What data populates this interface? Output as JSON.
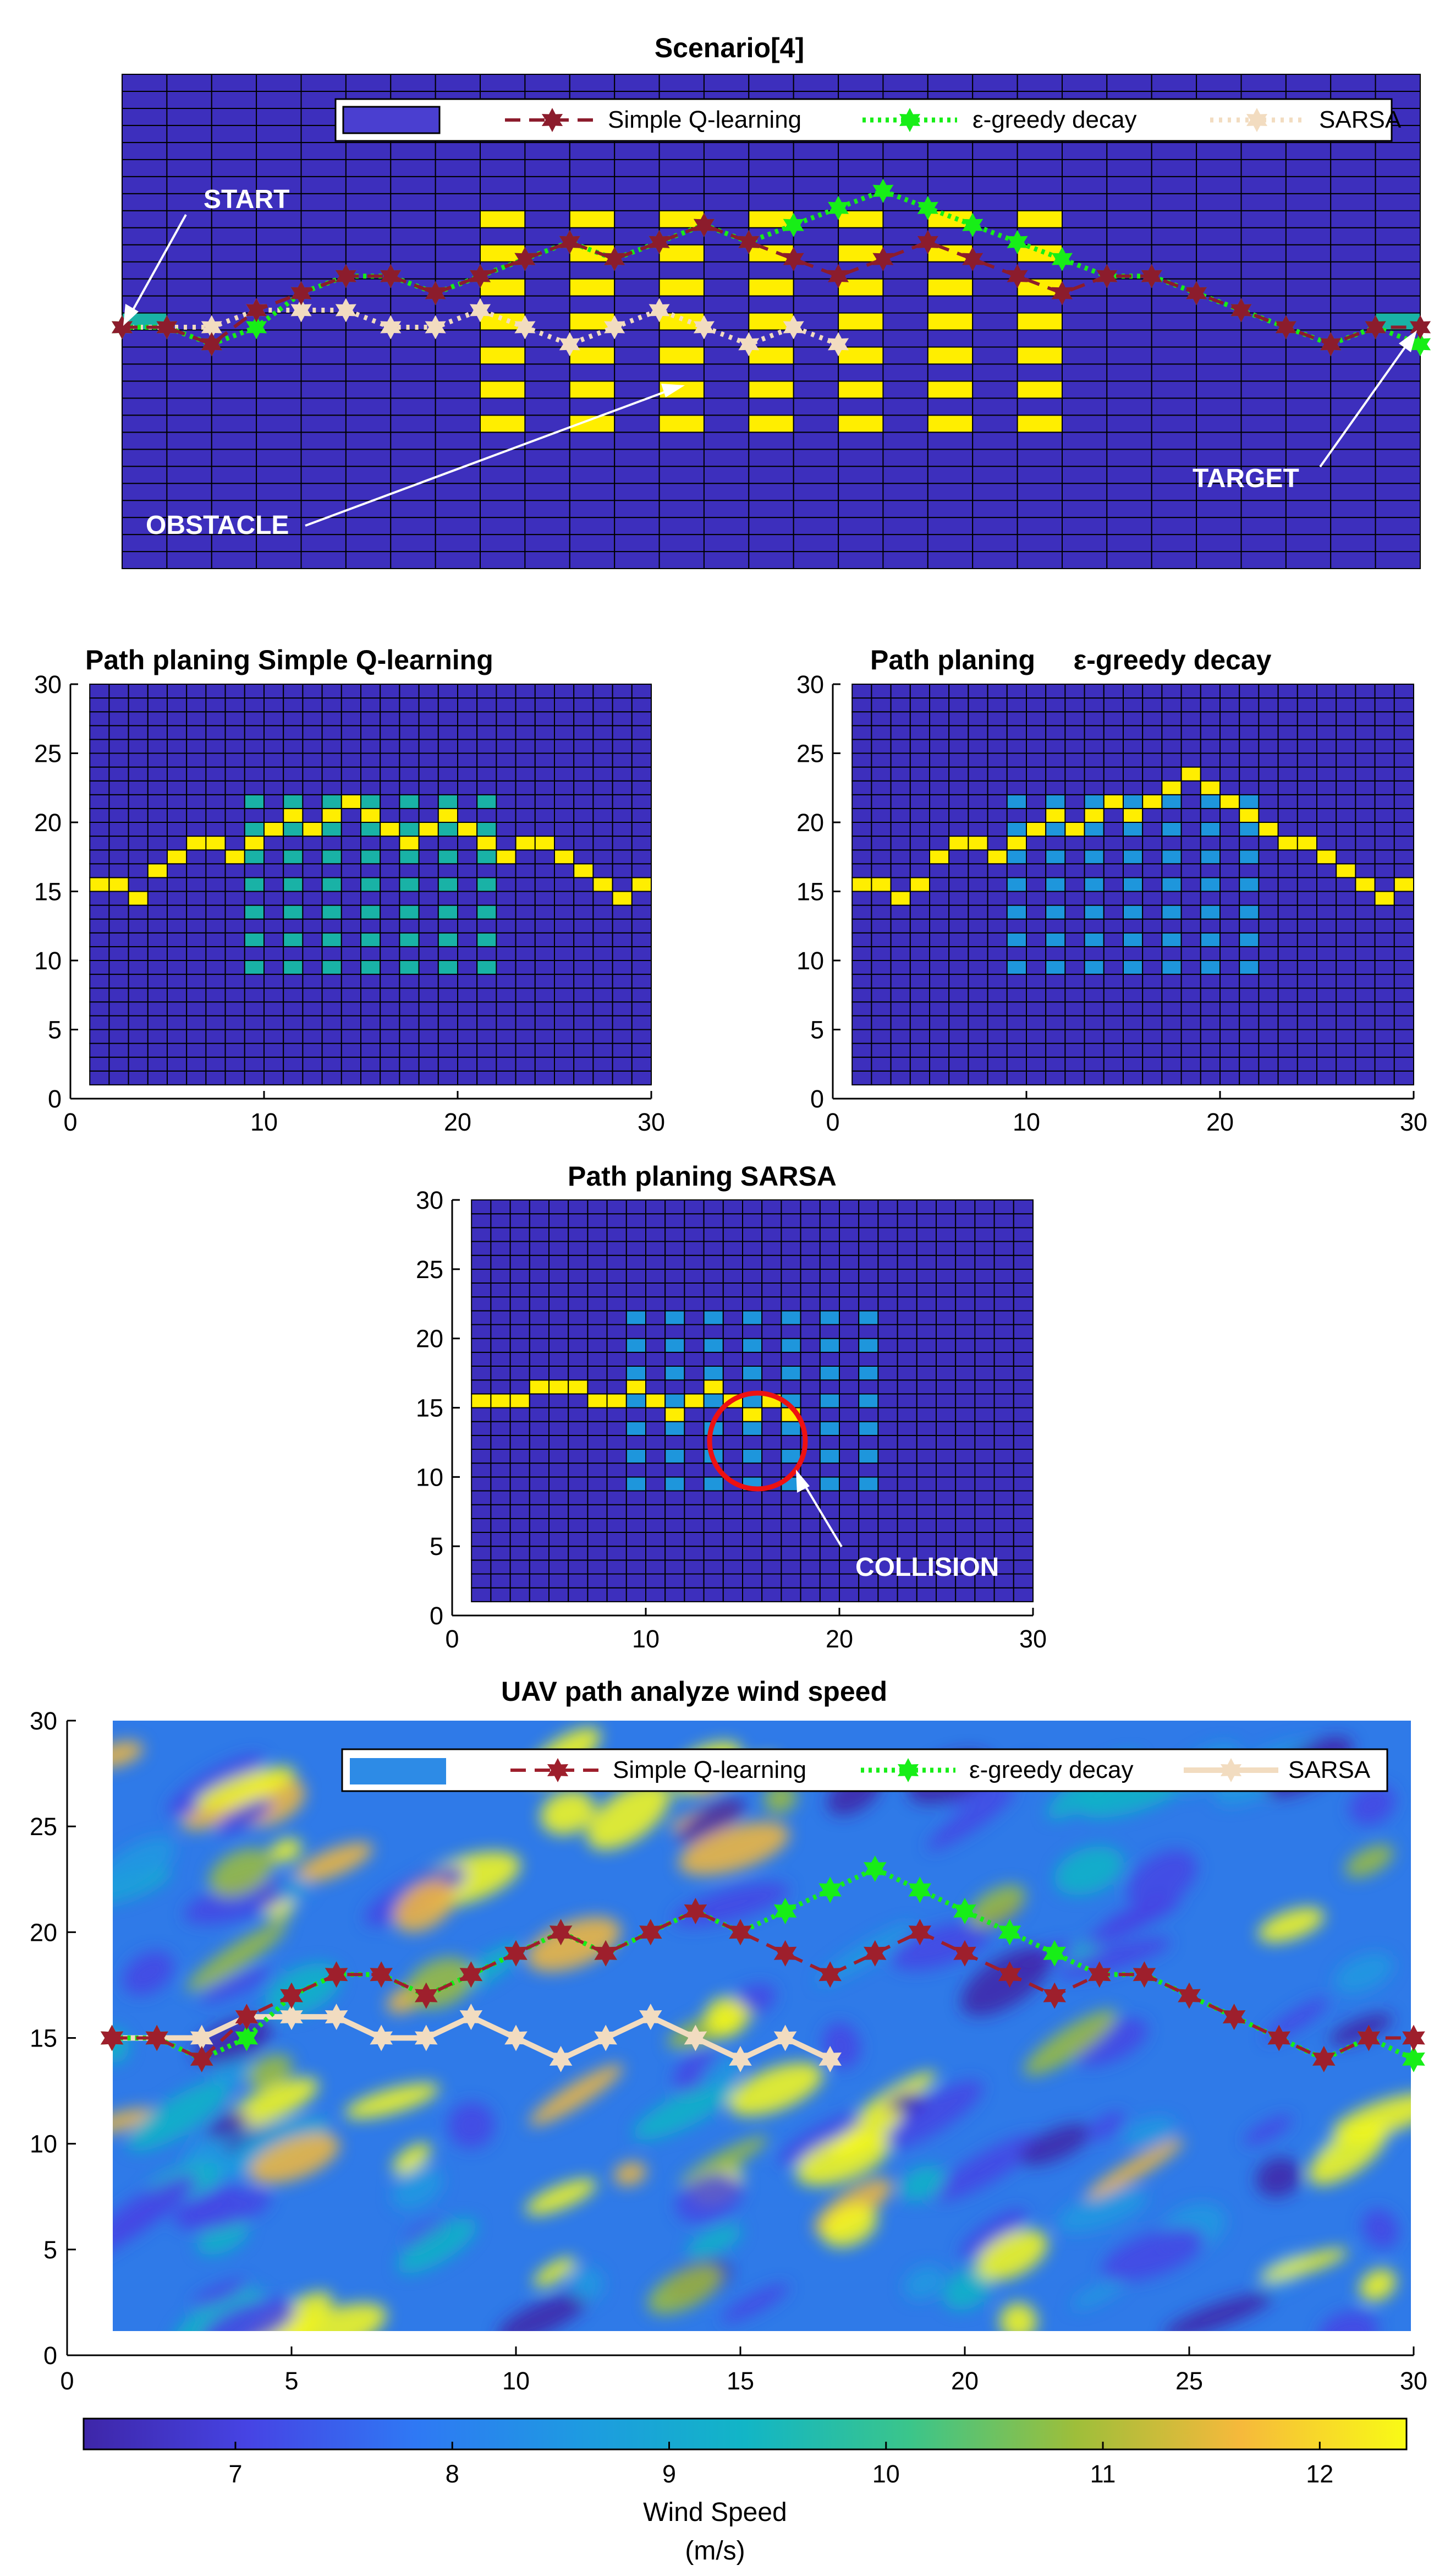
{
  "chart_data": [
    {
      "id": "scenario",
      "type": "grid-path",
      "title": "Scenario[4]",
      "xlim": [
        1,
        30
      ],
      "ylim": [
        1,
        30
      ],
      "colors": {
        "bg": "#3d2fbd",
        "obstacle": "#ffee00",
        "target_cell": "#19b2a6"
      },
      "obstacle_columns": [
        9,
        11,
        13,
        15,
        17,
        19,
        21
      ],
      "obstacle_rows": [
        9,
        11,
        13,
        15,
        17,
        19,
        21
      ],
      "legend": {
        "entries": [
          {
            "label": "Simple Q-learning",
            "color": "#8c1c2c"
          },
          {
            "label": "ε-greedy decay",
            "color": "#17ee17"
          },
          {
            "label": "SARSA",
            "color": "#f2dcc0"
          }
        ]
      },
      "annotations": {
        "start": "START",
        "obstacle": "OBSTACLE",
        "target": "TARGET"
      }
    },
    {
      "id": "q",
      "type": "grid-path",
      "title": "Path planing Simple Q-learning",
      "xlim": [
        0,
        30
      ],
      "ylim": [
        0,
        30
      ],
      "xticks": [
        0,
        10,
        20,
        30
      ],
      "yticks": [
        0,
        5,
        10,
        15,
        20,
        25,
        30
      ],
      "colors": {
        "bg": "#3d2fbd",
        "obstacle": "#19b2a6",
        "path": "#ffee00"
      },
      "path": "simple_q"
    },
    {
      "id": "eps",
      "type": "grid-path",
      "title": "Path planing     ε-greedy decay",
      "xlim": [
        0,
        30
      ],
      "ylim": [
        0,
        30
      ],
      "xticks": [
        0,
        10,
        20,
        30
      ],
      "yticks": [
        0,
        5,
        10,
        15,
        20,
        25,
        30
      ],
      "colors": {
        "bg": "#3d2fbd",
        "obstacle": "#1e96dc",
        "path": "#ffee00"
      },
      "path": "eps_greedy"
    },
    {
      "id": "sarsa",
      "type": "grid-path",
      "title": "Path planing SARSA",
      "xlim": [
        0,
        30
      ],
      "ylim": [
        0,
        30
      ],
      "xticks": [
        0,
        10,
        20,
        30
      ],
      "yticks": [
        0,
        5,
        10,
        15,
        20,
        25,
        30
      ],
      "colors": {
        "bg": "#3d2fbd",
        "obstacle": "#1e96dc",
        "path": "#ffee00"
      },
      "path": "sarsa",
      "annotation": "COLLISION"
    },
    {
      "id": "wind",
      "type": "heatmap-line",
      "title": "UAV path analyze wind speed",
      "xlim": [
        0,
        30
      ],
      "ylim": [
        0,
        30
      ],
      "xticks": [
        0,
        5,
        10,
        15,
        20,
        25,
        30
      ],
      "yticks": [
        0,
        5,
        10,
        15,
        20,
        25,
        30
      ],
      "colorbar": {
        "label": "Wind Speed",
        "units": "(m/s)",
        "range": [
          6.3,
          12.4
        ],
        "ticks": [
          7,
          8,
          9,
          10,
          11,
          12
        ]
      },
      "legend": {
        "entries": [
          {
            "label": "Simple Q-learning",
            "color": "#9e1f2c"
          },
          {
            "label": "ε-greedy decay",
            "color": "#17ee17"
          },
          {
            "label": "SARSA",
            "color": "#f2dcc0"
          }
        ]
      }
    }
  ],
  "paths": {
    "simple_q": {
      "x": [
        1,
        2,
        3,
        4,
        5,
        6,
        7,
        8,
        9,
        10,
        11,
        12,
        13,
        14,
        15,
        16,
        17,
        18,
        19,
        20,
        21,
        22,
        23,
        24,
        25,
        26,
        27,
        28,
        29,
        30
      ],
      "y": [
        15,
        15,
        14,
        16,
        17,
        18,
        18,
        17,
        18,
        19,
        20,
        19,
        20,
        21,
        20,
        19,
        18,
        19,
        20,
        19,
        18,
        17,
        18,
        18,
        17,
        16,
        15,
        14,
        15,
        15
      ]
    },
    "eps_greedy": {
      "x": [
        1,
        2,
        3,
        4,
        5,
        6,
        7,
        8,
        9,
        10,
        11,
        12,
        13,
        14,
        15,
        16,
        17,
        18,
        19,
        20,
        21,
        22,
        23,
        24,
        25,
        26,
        27,
        28,
        29,
        30
      ],
      "y": [
        15,
        15,
        14,
        15,
        17,
        18,
        18,
        17,
        18,
        19,
        20,
        19,
        20,
        21,
        20,
        21,
        22,
        23,
        22,
        21,
        20,
        19,
        18,
        18,
        17,
        16,
        15,
        14,
        15,
        14
      ]
    },
    "sarsa": {
      "x": [
        1,
        2,
        3,
        4,
        5,
        6,
        7,
        8,
        9,
        10,
        11,
        12,
        13,
        14,
        15,
        16,
        17
      ],
      "y": [
        15,
        15,
        15,
        16,
        16,
        16,
        15,
        15,
        16,
        15,
        14,
        15,
        16,
        15,
        14,
        15,
        14
      ]
    }
  }
}
